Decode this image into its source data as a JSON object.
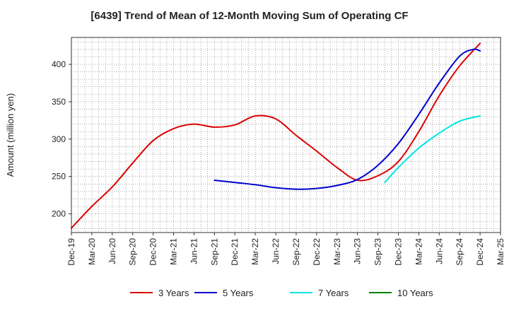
{
  "chart_data": {
    "type": "line",
    "title": "[6439]  Trend of Mean of 12-Month Moving Sum of Operating CF",
    "xlabel": "",
    "ylabel": "Amount (million yen)",
    "ylim": [
      175,
      436
    ],
    "yticks": [
      200,
      250,
      300,
      350,
      400
    ],
    "x_tick_labels": [
      "Dec-19",
      "Mar-20",
      "Jun-20",
      "Sep-20",
      "Dec-20",
      "Mar-21",
      "Jun-21",
      "Sep-21",
      "Dec-21",
      "Mar-22",
      "Jun-22",
      "Sep-22",
      "Dec-22",
      "Mar-23",
      "Jun-23",
      "Sep-23",
      "Dec-23",
      "Mar-24",
      "Jun-24",
      "Sep-24",
      "Dec-24",
      "Mar-25"
    ],
    "x_range_months": [
      0,
      63
    ],
    "grid": true,
    "legend_position": "bottom",
    "series": [
      {
        "name": "3 Years",
        "color": "#dd0000",
        "points": [
          [
            0,
            181
          ],
          [
            3,
            210
          ],
          [
            6,
            236
          ],
          [
            9,
            268
          ],
          [
            12,
            298
          ],
          [
            15,
            314
          ],
          [
            18,
            320
          ],
          [
            21,
            316
          ],
          [
            24,
            319
          ],
          [
            27,
            331
          ],
          [
            30,
            327
          ],
          [
            33,
            305
          ],
          [
            36,
            284
          ],
          [
            39,
            262
          ],
          [
            42,
            245
          ],
          [
            45,
            251
          ],
          [
            48,
            270
          ],
          [
            51,
            310
          ],
          [
            54,
            358
          ],
          [
            57,
            398
          ],
          [
            60,
            428
          ]
        ]
      },
      {
        "name": "5 Years",
        "color": "#0000cc",
        "points": [
          [
            21,
            245
          ],
          [
            24,
            242
          ],
          [
            27,
            239
          ],
          [
            30,
            235
          ],
          [
            33,
            233
          ],
          [
            36,
            234
          ],
          [
            39,
            238
          ],
          [
            42,
            246
          ],
          [
            45,
            265
          ],
          [
            48,
            294
          ],
          [
            51,
            333
          ],
          [
            54,
            375
          ],
          [
            57,
            411
          ],
          [
            59,
            420
          ],
          [
            60,
            418
          ]
        ]
      },
      {
        "name": "7 Years",
        "color": "#00e5e5",
        "points": [
          [
            46,
            242
          ],
          [
            48,
            262
          ],
          [
            51,
            288
          ],
          [
            54,
            308
          ],
          [
            57,
            324
          ],
          [
            60,
            331
          ]
        ]
      },
      {
        "name": "10 Years",
        "color": "#008000",
        "points": []
      }
    ]
  }
}
